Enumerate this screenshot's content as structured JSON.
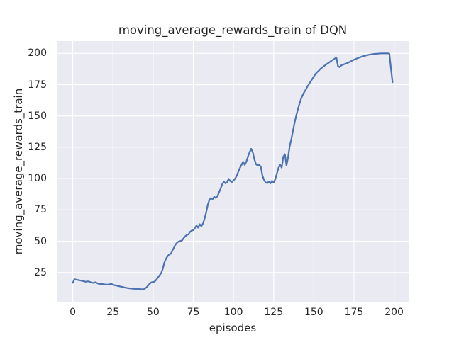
{
  "chart_data": {
    "type": "line",
    "title": "moving_average_rewards_train of DQN",
    "xlabel": "episodes",
    "ylabel": "moving_average_rewards_train",
    "legend_position": "none",
    "grid": true,
    "x_ticks": [
      0,
      25,
      50,
      75,
      100,
      125,
      150,
      175,
      200
    ],
    "y_ticks": [
      25,
      50,
      75,
      100,
      125,
      150,
      175,
      200
    ],
    "xlim": [
      -10,
      209
    ],
    "ylim": [
      1.1,
      209.8
    ],
    "colors": {
      "line": "#4C72B0",
      "plot_background": "#EAEAF2",
      "grid": "#FFFFFF",
      "text": "#262626",
      "figure_background": "#FFFFFF"
    },
    "series": [
      {
        "name": "moving_average_rewards_train",
        "x": [
          0,
          1,
          2,
          4,
          6,
          8,
          9,
          10,
          11,
          13,
          14,
          16,
          18,
          20,
          22,
          24,
          25,
          27,
          29,
          31,
          33,
          35,
          37,
          39,
          41,
          42,
          44,
          45,
          46,
          47,
          48,
          49,
          50,
          51,
          52,
          53,
          54,
          55,
          56,
          57,
          58,
          59,
          60,
          61,
          62,
          63,
          64,
          65,
          66,
          67,
          68,
          69,
          70,
          71,
          72,
          73,
          74,
          75,
          76,
          77,
          78,
          79,
          80,
          81,
          82,
          83,
          84,
          85,
          86,
          87,
          88,
          89,
          90,
          91,
          92,
          93,
          94,
          95,
          96,
          97,
          98,
          99,
          100,
          101,
          102,
          103,
          104,
          105,
          106,
          107,
          108,
          109,
          110,
          111,
          112,
          113,
          114,
          115,
          116,
          117,
          118,
          119,
          120,
          121,
          122,
          123,
          124,
          125,
          126,
          127,
          128,
          129,
          130,
          131,
          132,
          133,
          134,
          135,
          136,
          137,
          138,
          139,
          140,
          141,
          142,
          143,
          144,
          145,
          146,
          147,
          148,
          149,
          150,
          151,
          152,
          153,
          154,
          155,
          156,
          157,
          158,
          159,
          160,
          161,
          162,
          163,
          164,
          165,
          166,
          167,
          168,
          170,
          172,
          174,
          176,
          178,
          180,
          182,
          184,
          186,
          188,
          190,
          192,
          194,
          196,
          197,
          198,
          199
        ],
        "y": [
          16.8,
          19.6,
          19.3,
          18.8,
          18.3,
          17.6,
          17.9,
          17.9,
          17.2,
          16.6,
          17.2,
          16.0,
          15.8,
          15.5,
          15.3,
          16.0,
          15.2,
          14.6,
          14.0,
          13.4,
          12.8,
          12.4,
          12.1,
          11.9,
          12.0,
          11.7,
          11.5,
          12.3,
          13.3,
          14.8,
          16.2,
          17.2,
          17.4,
          17.8,
          19.3,
          21.0,
          22.8,
          24.5,
          28.0,
          33.0,
          36.0,
          38.0,
          39.5,
          40.0,
          42.5,
          45.0,
          47.5,
          49.0,
          49.8,
          50.2,
          50.6,
          52.5,
          54.0,
          55.0,
          55.5,
          57.5,
          58.5,
          58.8,
          60.5,
          62.5,
          60.8,
          63.5,
          62.0,
          64.0,
          68.0,
          73.0,
          79.0,
          83.0,
          84.5,
          83.5,
          85.5,
          84.5,
          86.0,
          89.0,
          92.0,
          95.5,
          97.5,
          96.3,
          97.0,
          99.8,
          98.0,
          97.3,
          98.5,
          100.0,
          102.2,
          105.5,
          108.5,
          111.0,
          113.5,
          111.0,
          113.5,
          117.5,
          121.0,
          123.8,
          121.0,
          115.5,
          111.5,
          110.5,
          111.0,
          109.5,
          102.5,
          99.0,
          97.0,
          96.3,
          97.7,
          96.2,
          98.2,
          96.8,
          99.5,
          104.0,
          108.5,
          111.0,
          108.8,
          117.5,
          119.5,
          110.5,
          117.0,
          126.0,
          131.5,
          138.0,
          144.5,
          150.0,
          155.0,
          159.5,
          163.5,
          166.5,
          169.0,
          171.0,
          173.5,
          175.5,
          177.5,
          179.5,
          181.5,
          183.5,
          185.0,
          186.0,
          187.5,
          188.5,
          189.5,
          190.5,
          191.5,
          192.3,
          193.2,
          194.2,
          195.0,
          195.8,
          196.8,
          190.0,
          189.0,
          190.3,
          191.0,
          191.8,
          193.0,
          194.3,
          195.5,
          196.5,
          197.5,
          198.2,
          198.8,
          199.3,
          199.6,
          199.8,
          200.0,
          200.0,
          200.0,
          199.8,
          188.0,
          177.0
        ]
      }
    ]
  }
}
